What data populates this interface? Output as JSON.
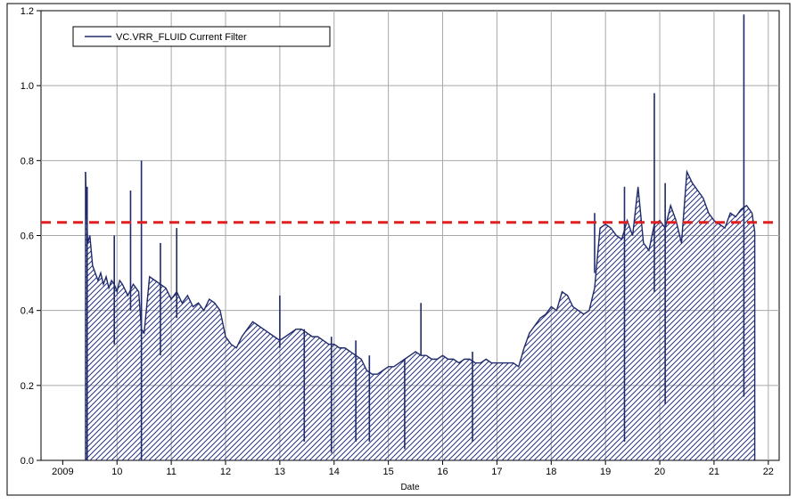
{
  "chart_data": {
    "type": "area",
    "title": "",
    "xlabel": "Date",
    "ylabel": "",
    "xlim": [
      2008.6,
      2022.2
    ],
    "ylim": [
      0.0,
      1.2
    ],
    "x_ticks": [
      {
        "value": 2009.0,
        "label": "2009"
      },
      {
        "value": 2010.0,
        "label": "10"
      },
      {
        "value": 2011.0,
        "label": "11"
      },
      {
        "value": 2012.0,
        "label": "12"
      },
      {
        "value": 2013.0,
        "label": "13"
      },
      {
        "value": 2014.0,
        "label": "14"
      },
      {
        "value": 2015.0,
        "label": "15"
      },
      {
        "value": 2016.0,
        "label": "16"
      },
      {
        "value": 2017.0,
        "label": "17"
      },
      {
        "value": 2018.0,
        "label": "18"
      },
      {
        "value": 2019.0,
        "label": "19"
      },
      {
        "value": 2020.0,
        "label": "20"
      },
      {
        "value": 2021.0,
        "label": "21"
      },
      {
        "value": 2022.0,
        "label": "22"
      }
    ],
    "y_ticks": [
      {
        "value": 0.0,
        "label": "0.0"
      },
      {
        "value": 0.2,
        "label": "0.2"
      },
      {
        "value": 0.4,
        "label": "0.4"
      },
      {
        "value": 0.6,
        "label": "0.6"
      },
      {
        "value": 0.8,
        "label": "0.8"
      },
      {
        "value": 1.0,
        "label": "1.0"
      },
      {
        "value": 1.2,
        "label": "1.2"
      }
    ],
    "grid": true,
    "legend": {
      "position": "top-left",
      "entries": [
        {
          "label": "VC.VRR_FLUID Current Filter",
          "color": "#1f2a6b"
        }
      ]
    },
    "threshold": {
      "value": 0.635,
      "color": "#e02020",
      "style": "dashed"
    },
    "series": [
      {
        "name": "VC.VRR_FLUID Current Filter",
        "color": "#1f2a6b",
        "fill": "hatched",
        "x": [
          2009.42,
          2009.44,
          2009.46,
          2009.5,
          2009.55,
          2009.6,
          2009.65,
          2009.7,
          2009.75,
          2009.8,
          2009.85,
          2009.9,
          2009.95,
          2010.0,
          2010.05,
          2010.1,
          2010.2,
          2010.3,
          2010.4,
          2010.45,
          2010.5,
          2010.6,
          2010.7,
          2010.8,
          2010.9,
          2011.0,
          2011.1,
          2011.2,
          2011.3,
          2011.4,
          2011.5,
          2011.6,
          2011.7,
          2011.8,
          2011.9,
          2012.0,
          2012.1,
          2012.2,
          2012.3,
          2012.4,
          2012.5,
          2012.6,
          2012.7,
          2012.8,
          2012.9,
          2013.0,
          2013.1,
          2013.2,
          2013.3,
          2013.4,
          2013.5,
          2013.6,
          2013.7,
          2013.8,
          2013.9,
          2014.0,
          2014.1,
          2014.2,
          2014.3,
          2014.4,
          2014.5,
          2014.6,
          2014.7,
          2014.8,
          2014.9,
          2015.0,
          2015.1,
          2015.2,
          2015.3,
          2015.4,
          2015.5,
          2015.6,
          2015.7,
          2015.8,
          2015.9,
          2016.0,
          2016.1,
          2016.2,
          2016.3,
          2016.4,
          2016.5,
          2016.6,
          2016.7,
          2016.8,
          2016.9,
          2017.0,
          2017.1,
          2017.2,
          2017.3,
          2017.4,
          2017.5,
          2017.6,
          2017.7,
          2017.8,
          2017.9,
          2018.0,
          2018.1,
          2018.2,
          2018.3,
          2018.4,
          2018.5,
          2018.6,
          2018.7,
          2018.8,
          2018.9,
          2019.0,
          2019.1,
          2019.2,
          2019.3,
          2019.4,
          2019.5,
          2019.6,
          2019.7,
          2019.8,
          2019.9,
          2020.0,
          2020.1,
          2020.2,
          2020.3,
          2020.4,
          2020.5,
          2020.6,
          2020.7,
          2020.8,
          2020.9,
          2021.0,
          2021.1,
          2021.2,
          2021.3,
          2021.4,
          2021.5,
          2021.6,
          2021.7,
          2021.75
        ],
        "y": [
          0.77,
          0.66,
          0.58,
          0.6,
          0.52,
          0.5,
          0.48,
          0.5,
          0.47,
          0.49,
          0.46,
          0.48,
          0.47,
          0.45,
          0.48,
          0.47,
          0.44,
          0.47,
          0.45,
          0.35,
          0.34,
          0.49,
          0.48,
          0.47,
          0.46,
          0.43,
          0.45,
          0.42,
          0.44,
          0.41,
          0.42,
          0.4,
          0.43,
          0.42,
          0.4,
          0.33,
          0.31,
          0.3,
          0.33,
          0.35,
          0.37,
          0.36,
          0.35,
          0.34,
          0.33,
          0.32,
          0.33,
          0.34,
          0.35,
          0.35,
          0.34,
          0.33,
          0.33,
          0.32,
          0.31,
          0.31,
          0.3,
          0.3,
          0.29,
          0.28,
          0.27,
          0.24,
          0.23,
          0.23,
          0.24,
          0.25,
          0.25,
          0.26,
          0.27,
          0.28,
          0.29,
          0.28,
          0.28,
          0.27,
          0.27,
          0.28,
          0.27,
          0.27,
          0.26,
          0.27,
          0.27,
          0.26,
          0.26,
          0.27,
          0.26,
          0.26,
          0.26,
          0.26,
          0.26,
          0.25,
          0.3,
          0.34,
          0.36,
          0.38,
          0.39,
          0.41,
          0.4,
          0.45,
          0.44,
          0.41,
          0.4,
          0.39,
          0.4,
          0.46,
          0.62,
          0.63,
          0.62,
          0.6,
          0.59,
          0.64,
          0.6,
          0.73,
          0.58,
          0.56,
          0.63,
          0.64,
          0.62,
          0.68,
          0.64,
          0.58,
          0.77,
          0.74,
          0.72,
          0.7,
          0.66,
          0.64,
          0.63,
          0.62,
          0.66,
          0.65,
          0.67,
          0.68,
          0.66,
          0.61
        ]
      }
    ],
    "spikes": [
      {
        "x": 2009.45,
        "top": 0.73,
        "bottom": 0.0
      },
      {
        "x": 2009.95,
        "top": 0.6,
        "bottom": 0.31
      },
      {
        "x": 2010.25,
        "top": 0.72,
        "bottom": 0.4
      },
      {
        "x": 2010.45,
        "top": 0.8,
        "bottom": 0.0
      },
      {
        "x": 2010.8,
        "top": 0.58,
        "bottom": 0.28
      },
      {
        "x": 2011.1,
        "top": 0.62,
        "bottom": 0.38
      },
      {
        "x": 2013.0,
        "top": 0.44,
        "bottom": 0.3
      },
      {
        "x": 2013.45,
        "top": 0.35,
        "bottom": 0.05
      },
      {
        "x": 2013.95,
        "top": 0.33,
        "bottom": 0.02
      },
      {
        "x": 2014.4,
        "top": 0.32,
        "bottom": 0.05
      },
      {
        "x": 2014.65,
        "top": 0.28,
        "bottom": 0.05
      },
      {
        "x": 2015.3,
        "top": 0.27,
        "bottom": 0.03
      },
      {
        "x": 2015.6,
        "top": 0.42,
        "bottom": 0.28
      },
      {
        "x": 2016.55,
        "top": 0.29,
        "bottom": 0.05
      },
      {
        "x": 2018.8,
        "top": 0.66,
        "bottom": 0.5
      },
      {
        "x": 2019.35,
        "top": 0.73,
        "bottom": 0.05
      },
      {
        "x": 2019.9,
        "top": 0.98,
        "bottom": 0.45
      },
      {
        "x": 2020.1,
        "top": 0.74,
        "bottom": 0.15
      },
      {
        "x": 2021.55,
        "top": 1.19,
        "bottom": 0.17
      }
    ]
  }
}
